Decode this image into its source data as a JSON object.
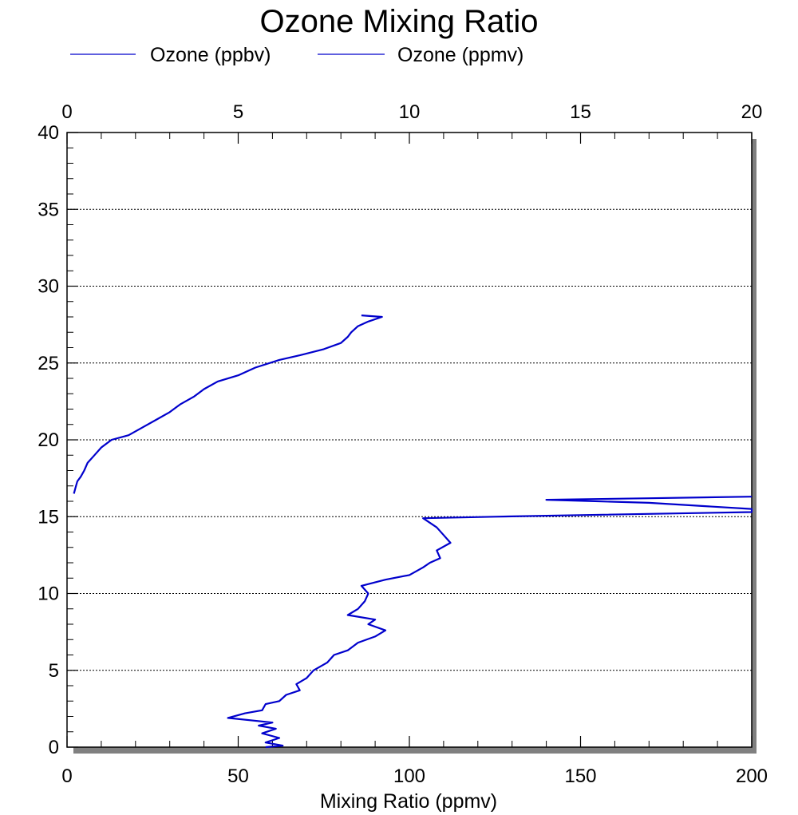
{
  "chart_data": {
    "type": "line",
    "title": "Ozone Mixing Ratio",
    "xlabel": "Mixing Ratio (ppmv)",
    "ylabel": "",
    "bottom_x": {
      "lim": [
        0,
        200
      ],
      "ticks": [
        "0",
        "50",
        "100",
        "150",
        "200"
      ]
    },
    "top_x": {
      "lim": [
        0,
        20
      ],
      "ticks": [
        "0",
        "5",
        "10",
        "15",
        "20"
      ]
    },
    "y": {
      "lim": [
        0,
        40
      ],
      "ticks": [
        "0",
        "5",
        "10",
        "15",
        "20",
        "25",
        "30",
        "35",
        "40"
      ]
    },
    "grid": "horizontal dotted at major y ticks",
    "legend_position": "top-left",
    "series": [
      {
        "name": "Ozone (ppbv)",
        "axis": "bottom",
        "color": "#0000cc",
        "points": [
          [
            58,
            0
          ],
          [
            63,
            0.1
          ],
          [
            58,
            0.3
          ],
          [
            62,
            0.6
          ],
          [
            57,
            0.9
          ],
          [
            61,
            1.2
          ],
          [
            56,
            1.4
          ],
          [
            60,
            1.6
          ],
          [
            47,
            1.9
          ],
          [
            52,
            2.2
          ],
          [
            57,
            2.4
          ],
          [
            58,
            2.8
          ],
          [
            62,
            3.0
          ],
          [
            64,
            3.4
          ],
          [
            68,
            3.7
          ],
          [
            67,
            4.1
          ],
          [
            70,
            4.5
          ],
          [
            72,
            5.0
          ],
          [
            76,
            5.5
          ],
          [
            78,
            6.0
          ],
          [
            82,
            6.3
          ],
          [
            85,
            6.8
          ],
          [
            90,
            7.2
          ],
          [
            93,
            7.6
          ],
          [
            88,
            8.0
          ],
          [
            90,
            8.3
          ],
          [
            82,
            8.6
          ],
          [
            85,
            9.0
          ],
          [
            87,
            9.5
          ],
          [
            88,
            10.0
          ],
          [
            86,
            10.5
          ],
          [
            93,
            10.9
          ],
          [
            100,
            11.2
          ],
          [
            104,
            11.7
          ],
          [
            106,
            12.0
          ],
          [
            109,
            12.3
          ],
          [
            108,
            12.8
          ],
          [
            112,
            13.3
          ],
          [
            110,
            13.8
          ],
          [
            108,
            14.3
          ],
          [
            104,
            14.9
          ],
          [
            125,
            15.0
          ],
          [
            150,
            15.1
          ],
          [
            200,
            15.3
          ],
          [
            200,
            15.5
          ],
          [
            170,
            15.9
          ],
          [
            140,
            16.1
          ],
          [
            170,
            16.2
          ],
          [
            200,
            16.3
          ]
        ]
      },
      {
        "name": "Ozone (ppmv)",
        "axis": "top",
        "color": "#0000cc",
        "points": [
          [
            0.2,
            16.5
          ],
          [
            0.25,
            16.9
          ],
          [
            0.3,
            17.3
          ],
          [
            0.4,
            17.6
          ],
          [
            0.5,
            18.0
          ],
          [
            0.6,
            18.5
          ],
          [
            0.8,
            19.0
          ],
          [
            1.0,
            19.5
          ],
          [
            1.3,
            20.0
          ],
          [
            1.8,
            20.3
          ],
          [
            2.2,
            20.8
          ],
          [
            2.6,
            21.3
          ],
          [
            3.0,
            21.8
          ],
          [
            3.3,
            22.3
          ],
          [
            3.7,
            22.8
          ],
          [
            4.0,
            23.3
          ],
          [
            4.4,
            23.8
          ],
          [
            5.0,
            24.2
          ],
          [
            5.5,
            24.7
          ],
          [
            6.2,
            25.2
          ],
          [
            6.8,
            25.5
          ],
          [
            7.5,
            25.9
          ],
          [
            8.0,
            26.3
          ],
          [
            8.2,
            26.7
          ],
          [
            8.3,
            27.0
          ],
          [
            8.5,
            27.4
          ],
          [
            8.8,
            27.7
          ],
          [
            9.2,
            28.0
          ],
          [
            8.6,
            28.1
          ]
        ]
      }
    ]
  }
}
